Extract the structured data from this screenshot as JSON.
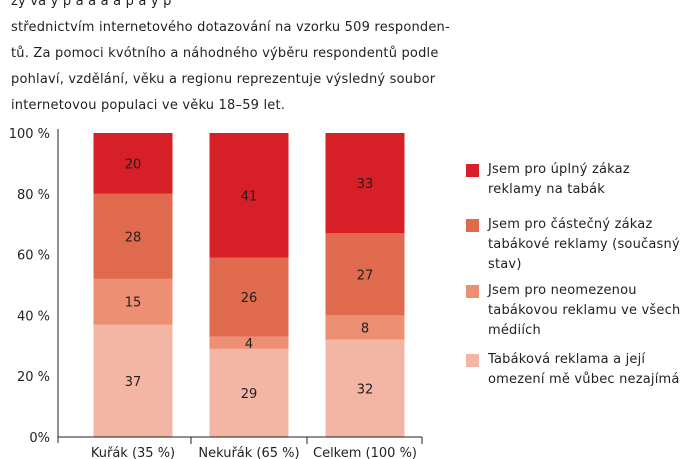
{
  "intro": {
    "lines": [
      "zy  va  y  p          a      a          a            a p      a  y   p",
      "střednictvím internetového dotazování na vzorku 509 responden-",
      "tů. Za pomoci kvótního a náhodného výběru respondentů podle",
      "pohlaví, vzdělání, věku a regionu reprezentuje výsledný soubor",
      "internetovou populaci ve věku 18–59 let."
    ]
  },
  "chart_data": {
    "type": "bar",
    "stacked": true,
    "categories": [
      "Kuřák (35 %)",
      "Nekuřák (65 %)",
      "Celkem (100 %)"
    ],
    "series": [
      {
        "name": "Tabáková reklama a její omezení mě vůbec nezajímá",
        "values": [
          37,
          29,
          32
        ],
        "color": "#f4b6a4"
      },
      {
        "name": "Jsem pro neomezenou tabákovou reklamu ve všech médiích",
        "values": [
          15,
          4,
          8
        ],
        "color": "#ec8f72"
      },
      {
        "name": "Jsem pro částečný zákaz tabákové reklamy (současný stav)",
        "values": [
          28,
          26,
          27
        ],
        "color": "#e06a4e"
      },
      {
        "name": "Jsem pro úplný zákaz reklamy na tabák",
        "values": [
          20,
          41,
          33
        ],
        "color": "#d61f26"
      }
    ],
    "yticks": [
      "0%",
      "20 %",
      "40 %",
      "60 %",
      "80 %",
      "100 %"
    ],
    "ylim": [
      0,
      100
    ],
    "grid": false,
    "legend_position": "right"
  },
  "legend": {
    "items": [
      {
        "lines": [
          "Jsem pro úplný zákaz",
          "reklamy na tabák"
        ],
        "color": "#d61f26"
      },
      {
        "lines": [
          "Jsem pro částečný zákaz",
          "tabákové reklamy (současný",
          "stav)"
        ],
        "color": "#e06a4e"
      },
      {
        "lines": [
          "Jsem pro neomezenou",
          "tabákovou reklamu ve všech",
          "médiích"
        ],
        "color": "#ec8f72"
      },
      {
        "lines": [
          "Tabáková reklama a její",
          "omezení mě vůbec nezajímá"
        ],
        "color": "#f4b6a4"
      }
    ]
  }
}
